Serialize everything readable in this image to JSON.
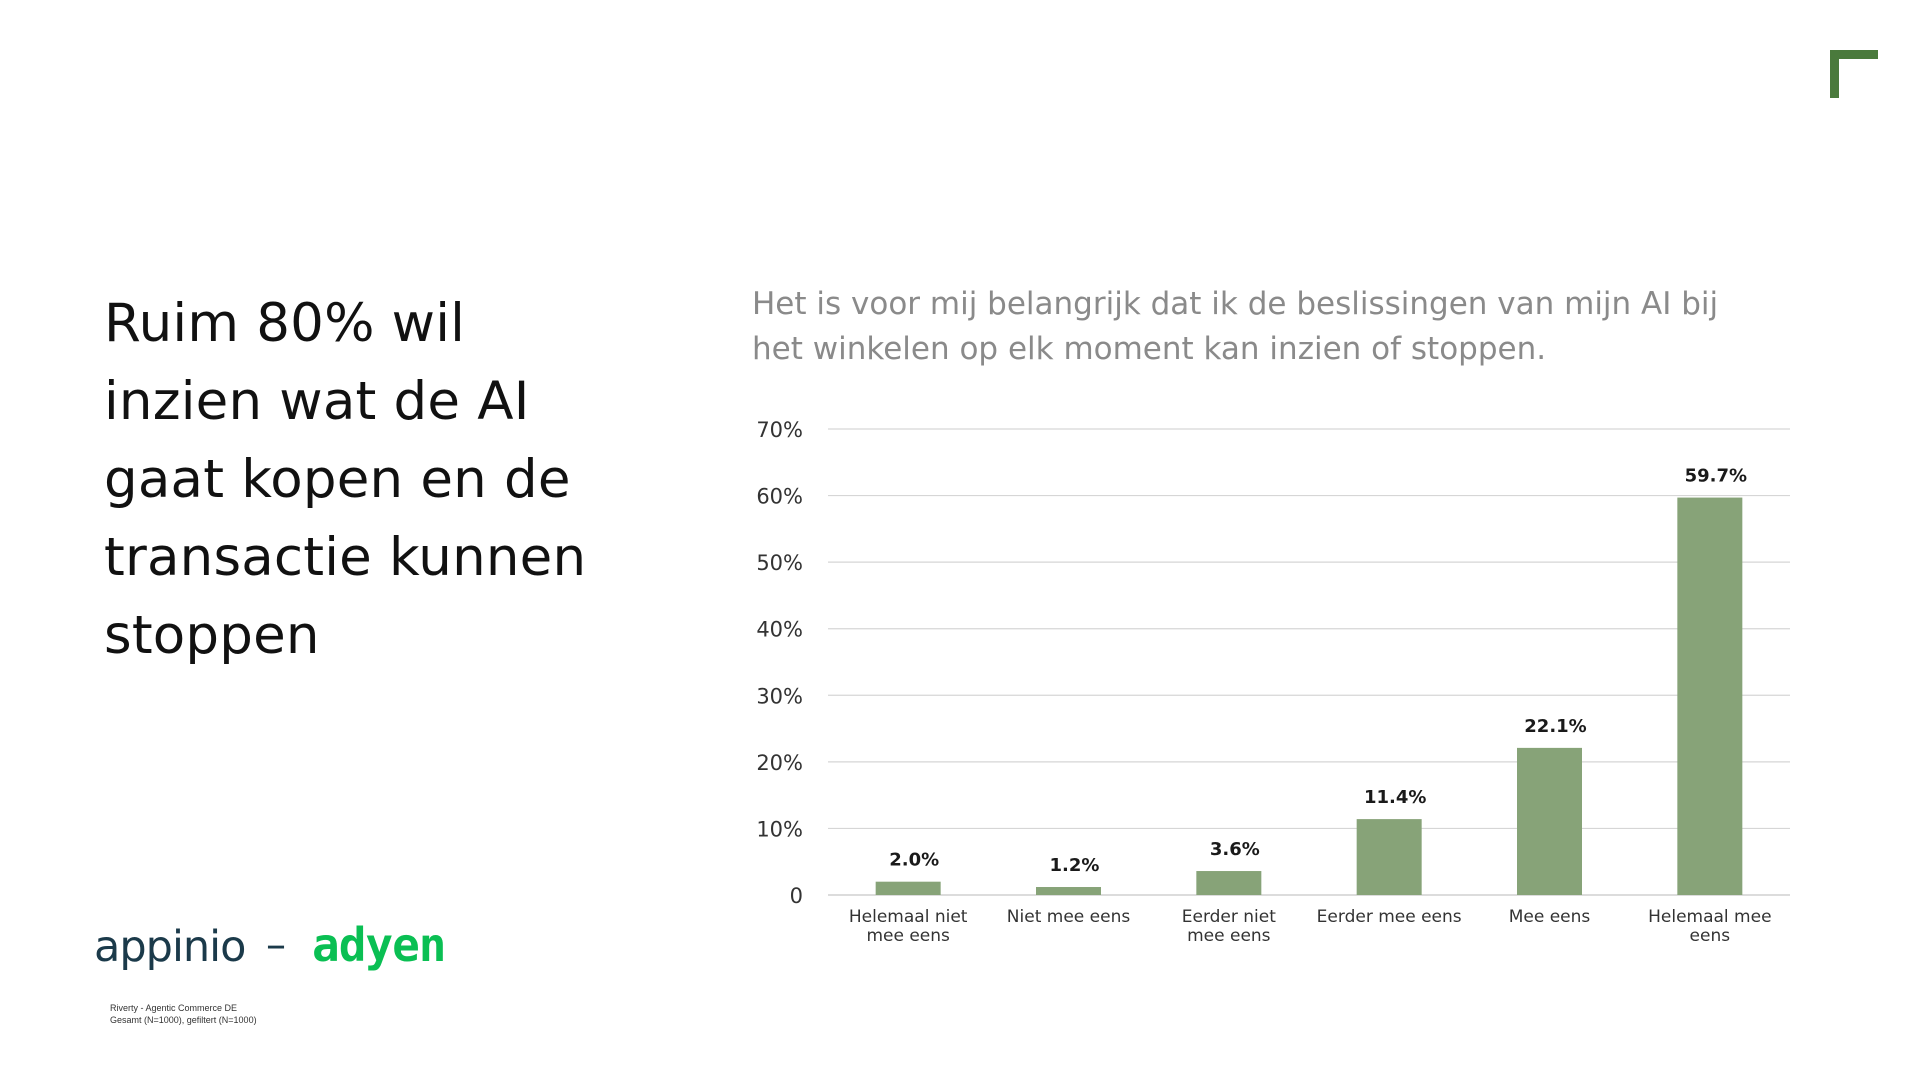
{
  "headline": {
    "lines": [
      "Ruim 80% wil",
      "inzien wat de AI",
      "gaat kopen en de",
      "transactie kunnen",
      "stoppen"
    ]
  },
  "logos": {
    "appinio": "appinio",
    "separator": "–",
    "adyen": "adyen"
  },
  "footnote": {
    "line1": "Riverty - Agentic Commerce DE",
    "line2": "Gesamt (N=1000), gefiltert (N=1000)"
  },
  "colors": {
    "bar": "#87a378",
    "brand_mark": "#4a7a3c",
    "grid": "#d6d6d6",
    "adyen_green": "#0abf53"
  },
  "icons": {
    "corner": "corner-bracket-icon"
  },
  "chart_data": {
    "type": "bar",
    "title": "",
    "subtitle_lines": [
      "Het is voor mij belangrijk dat ik de beslissingen van mijn AI bij",
      "het winkelen op elk moment kan inzien of stoppen."
    ],
    "categories": [
      [
        "Helemaal niet",
        "mee eens"
      ],
      [
        "Niet mee eens"
      ],
      [
        "Eerder niet",
        "mee eens"
      ],
      [
        "Eerder mee eens"
      ],
      [
        "Mee eens"
      ],
      [
        "Helemaal mee",
        "eens"
      ]
    ],
    "values": [
      2.0,
      1.2,
      3.6,
      11.4,
      22.1,
      59.7
    ],
    "value_labels": [
      "2.0%",
      "1.2%",
      "3.6%",
      "11.4%",
      "22.1%",
      "59.7%"
    ],
    "yticks": [
      0,
      10,
      20,
      30,
      40,
      50,
      60,
      70
    ],
    "ytick_labels": [
      "0",
      "10%",
      "20%",
      "30%",
      "40%",
      "50%",
      "60%",
      "70%"
    ],
    "ylim": [
      0,
      70
    ],
    "grid": true,
    "legend": "none",
    "xlabel": "",
    "ylabel": ""
  }
}
